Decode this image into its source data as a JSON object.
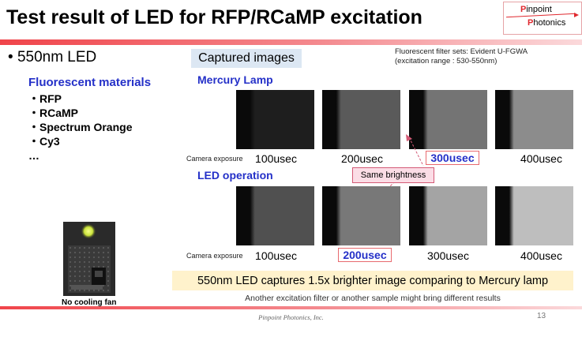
{
  "slide": {
    "title": "Test result of LED for RFP/RCaMP excitation",
    "page_number": "13",
    "footer": "Pinpoint Photonics, Inc."
  },
  "logo": {
    "line1": "Pinpoint",
    "line2": "Photonics"
  },
  "left": {
    "bullet": "550nm LED",
    "fm_title": "Fluorescent materials",
    "fm_items": [
      "・RFP",
      "・RCaMP",
      "・Spectrum Orange",
      "・Cy3",
      "…"
    ],
    "device_caption": "No cooling fan"
  },
  "captured": {
    "label": "Captured images",
    "filter_note_line1": "Fluorescent filter sets: Evident U-FGWA",
    "filter_note_line2": "(excitation range : 530-550nm)"
  },
  "mercury": {
    "title": "Mercury Lamp",
    "exposure_label": "Camera exposure",
    "times": [
      "100usec",
      "200usec",
      "300usec",
      "400usec"
    ],
    "highlight_index": 2,
    "brightness": [
      0.05,
      0.35,
      0.48,
      0.6
    ]
  },
  "led": {
    "title": "LED operation",
    "exposure_label": "Camera exposure",
    "times": [
      "100usec",
      "200usec",
      "300usec",
      "400usec"
    ],
    "highlight_index": 1,
    "brightness": [
      0.3,
      0.5,
      0.72,
      0.85
    ]
  },
  "annotation": {
    "same_brightness": "Same brightness"
  },
  "summary": {
    "headline": "550nm LED captures 1.5x brighter image comparing to Mercury lamp",
    "note": "Another excitation filter or another sample might bring different results"
  }
}
